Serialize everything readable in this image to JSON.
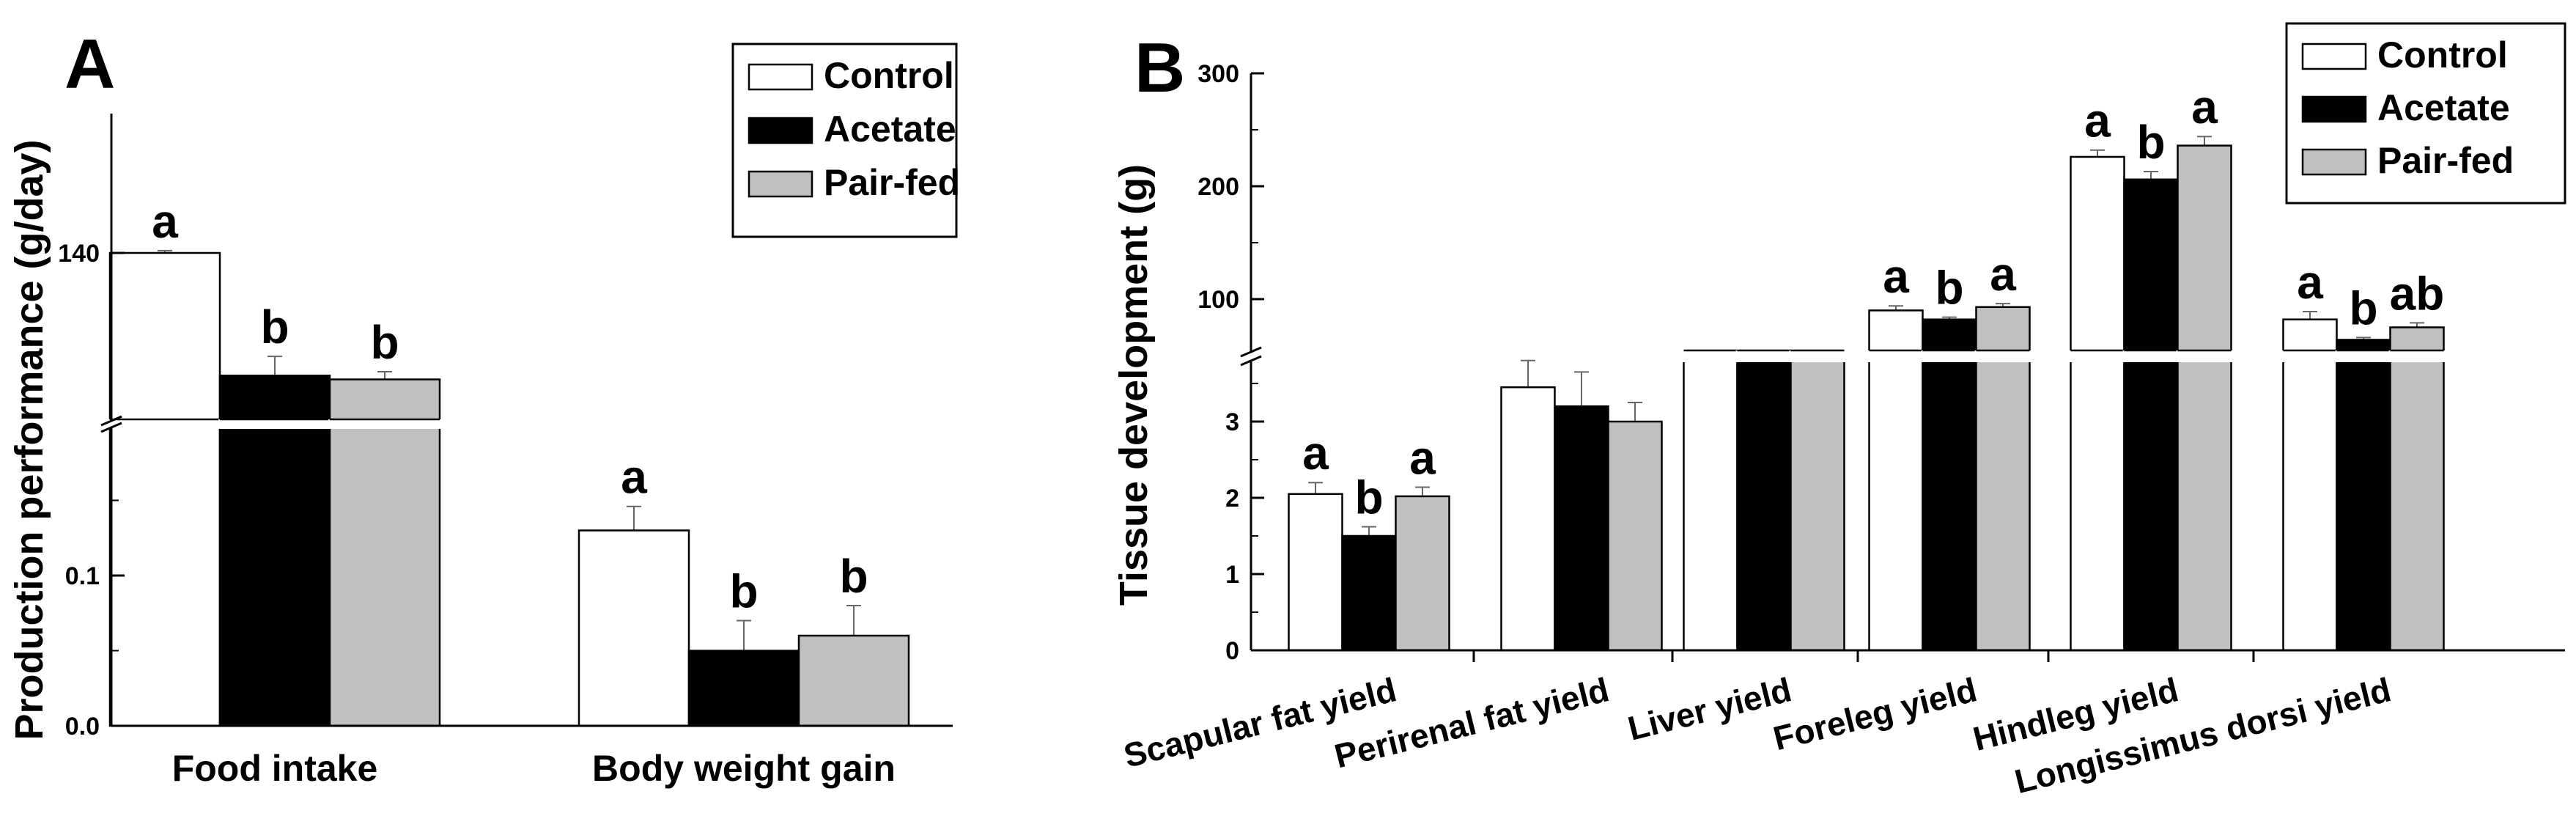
{
  "chart_data": [
    {
      "panel": "A",
      "type": "bar",
      "ylabel": "Production performance (g/day)",
      "axis_break": true,
      "yticks": [
        "140",
        "0.1",
        "0.0"
      ],
      "categories": [
        "Food intake",
        "Body weight gain"
      ],
      "series": [
        {
          "name": "Control",
          "color": "#ffffff",
          "values": [
            140,
            0.13
          ],
          "errors": [
            0.3,
            0.016
          ],
          "letters": [
            "a",
            "a"
          ]
        },
        {
          "name": "Acetate",
          "color": "#000000",
          "values": [
            124,
            0.05
          ],
          "errors": [
            2.5,
            0.02
          ],
          "letters": [
            "b",
            "b"
          ]
        },
        {
          "name": "Pair-fed",
          "color": "#c0c0c0",
          "values": [
            123.5,
            0.06
          ],
          "errors": [
            1,
            0.02
          ],
          "letters": [
            "b",
            "b"
          ]
        }
      ],
      "legend": {
        "position": "top-right",
        "entries": [
          "Control",
          "Acetate",
          "Pair-fed"
        ]
      }
    },
    {
      "panel": "B",
      "type": "bar",
      "ylabel": "Tissue development (g)",
      "axis_break": true,
      "yticks": [
        "300",
        "200",
        "100",
        "3",
        "2",
        "1",
        "0"
      ],
      "categories": [
        "Scapular fat yield",
        "Perirenal fat yield",
        "Liver yield",
        "Foreleg yield",
        "Hindleg yield",
        "Longissimus dorsi yield"
      ],
      "series": [
        {
          "name": "Control",
          "color": "#ffffff",
          "values": [
            2.05,
            3.45,
            52,
            90,
            226,
            82
          ],
          "errors": [
            0.15,
            0.35,
            1,
            4,
            6,
            7
          ],
          "letters": [
            "a",
            "",
            "",
            "a",
            "a",
            "a"
          ]
        },
        {
          "name": "Acetate",
          "color": "#000000",
          "values": [
            1.5,
            3.2,
            50,
            82,
            206,
            64
          ],
          "errors": [
            0.12,
            0.45,
            2,
            2,
            7,
            2
          ],
          "letters": [
            "b",
            "",
            "",
            "b",
            "b",
            "b"
          ]
        },
        {
          "name": "Pair-fed",
          "color": "#c0c0c0",
          "values": [
            2.02,
            3.0,
            49,
            93,
            236,
            75
          ],
          "errors": [
            0.12,
            0.25,
            3,
            3,
            8,
            4
          ],
          "letters": [
            "a",
            "",
            "",
            "a",
            "a",
            "ab"
          ]
        }
      ],
      "legend": {
        "position": "top-right",
        "entries": [
          "Control",
          "Acetate",
          "Pair-fed"
        ]
      }
    }
  ]
}
